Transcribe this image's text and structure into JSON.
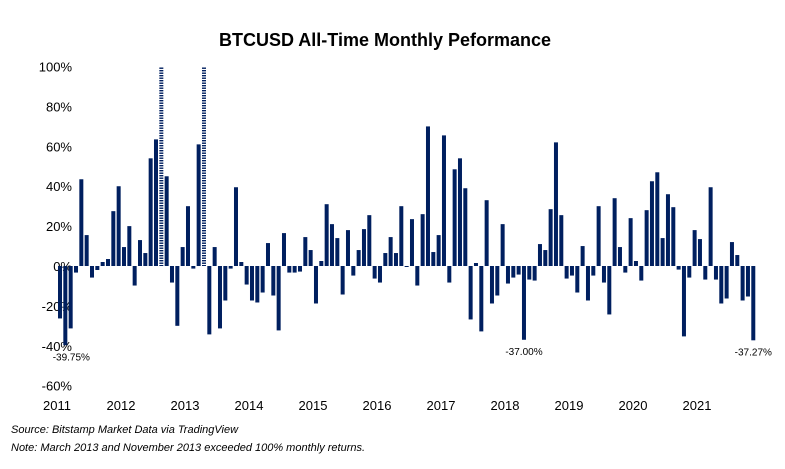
{
  "chart_data": {
    "type": "bar",
    "title": "BTCUSD All-Time Monthly Peformance",
    "xlabel": "",
    "ylabel": "",
    "ylim": [
      -60,
      100
    ],
    "yticks": [
      -60,
      -40,
      -20,
      0,
      20,
      40,
      60,
      80,
      100
    ],
    "ytick_labels": [
      "-60%",
      "-40%",
      "-20%",
      "0%",
      "20%",
      "40%",
      "60%",
      "80%",
      "100%"
    ],
    "xtick_labels": [
      "2011",
      "2012",
      "2013",
      "2014",
      "2015",
      "2016",
      "2017",
      "2018",
      "2019",
      "2020",
      "2021"
    ],
    "grid": false,
    "color": "#001f5f",
    "period": "Monthly, Aug 2011 - Jun 2022",
    "values": [
      -26.3,
      -39.75,
      -31.3,
      -3.3,
      43.5,
      15.5,
      -5.8,
      -2,
      2,
      3.5,
      27.5,
      40,
      9.5,
      20,
      -9.8,
      13,
      6.5,
      54,
      63.5,
      100,
      45,
      -8.3,
      -30,
      9.5,
      30,
      -1.3,
      61,
      100,
      -34.3,
      9.5,
      -31.3,
      -17.3,
      -1.3,
      39.5,
      2,
      -9.3,
      -17.3,
      -18.3,
      -13.3,
      11.5,
      -14.8,
      -32.3,
      16.5,
      -3.3,
      -3.3,
      -2.8,
      14.5,
      8,
      -18.8,
      2.5,
      31,
      21,
      14,
      -14.3,
      18,
      -4.8,
      8,
      18.5,
      25.5,
      -6.3,
      -8.3,
      6.5,
      14.5,
      6.5,
      30,
      -0.5,
      23.5,
      -9.8,
      26,
      70,
      7,
      15.5,
      65.5,
      -8.3,
      48.5,
      54,
      39,
      -26.8,
      1.5,
      -32.8,
      33,
      -18.8,
      -14.8,
      21,
      -8.8,
      -5.8,
      -4.3,
      -37.0,
      -6.8,
      -7.3,
      11,
      8,
      28.5,
      62,
      25.5,
      -6.3,
      -4.8,
      -13.3,
      10,
      -17.3,
      -4.8,
      30,
      -8.3,
      -24.3,
      34,
      9.5,
      -3.3,
      24,
      2.5,
      -7.3,
      28,
      42.5,
      47,
      14,
      36,
      29.5,
      -1.8,
      -35.3,
      -5.8,
      18,
      13.5,
      -6.8,
      39.5,
      -6.8,
      -18.8,
      -16.3,
      12,
      5.5,
      -17.3,
      -15.3,
      -37.27
    ],
    "exceeds_axis": [
      19,
      27
    ],
    "annotations": [
      {
        "index": 1,
        "text": "-39.75%"
      },
      {
        "index": 87,
        "text": "-37.00%"
      },
      {
        "index": 130,
        "text": "-37.27%"
      }
    ],
    "source": "Source: Bitstamp Market Data via TradingView",
    "note": "Note: March 2013 and November 2013 exceeded 100% monthly returns."
  }
}
